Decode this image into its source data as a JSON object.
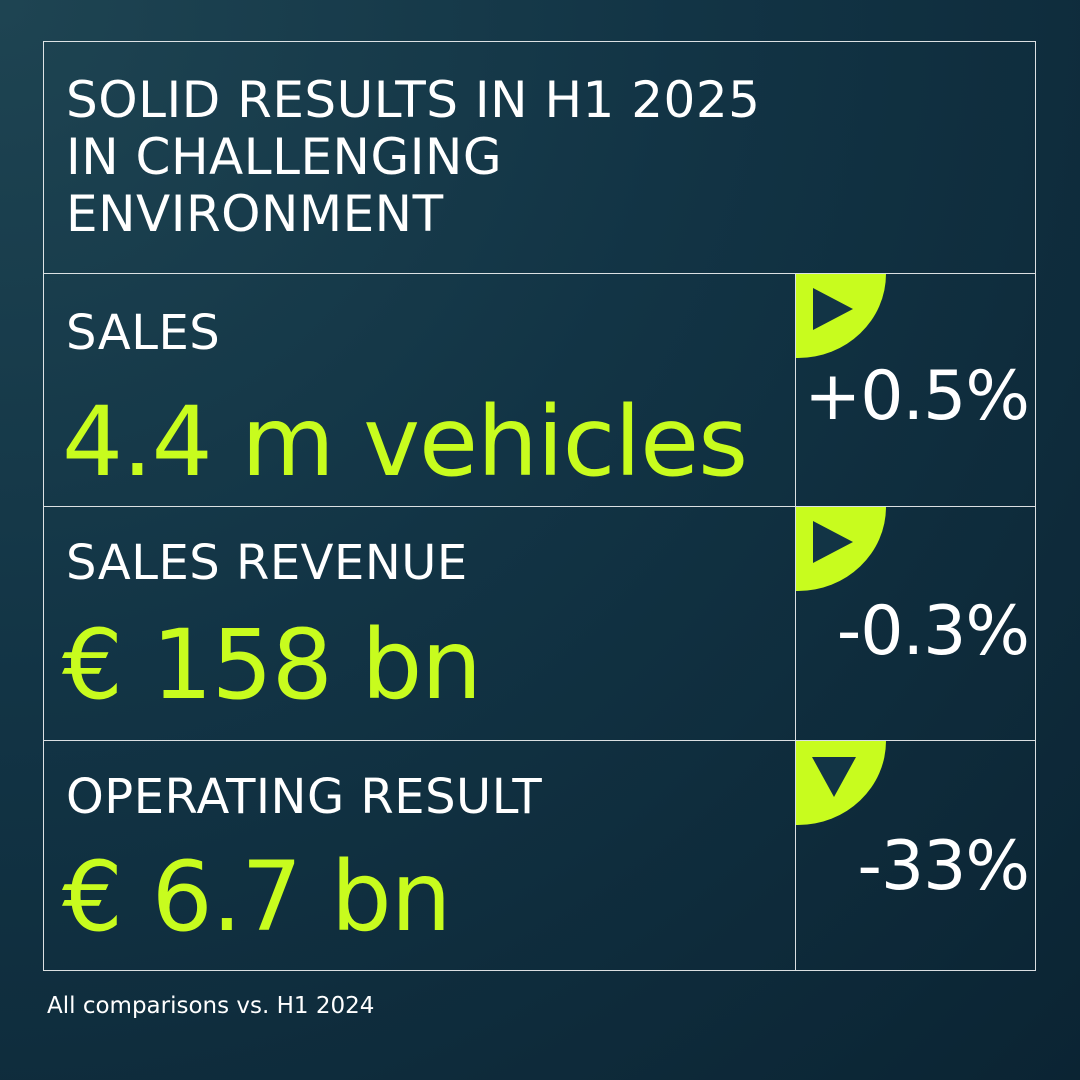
{
  "title": "SOLID RESULTS IN H1 2025\nIN CHALLENGING\nENVIRONMENT",
  "metrics": [
    {
      "label": "SALES",
      "value": "4.4 m vehicles",
      "change": "+0.5%",
      "direction_icon": "triangle-right-icon"
    },
    {
      "label": "SALES REVENUE",
      "value": "€ 158 bn",
      "change": "-0.3%",
      "direction_icon": "triangle-right-icon"
    },
    {
      "label": "OPERATING RESULT",
      "value": "€ 6.7 bn",
      "change": "-33%",
      "direction_icon": "triangle-down-icon"
    }
  ],
  "footnote": "All comparisons vs. H1 2024",
  "colors": {
    "accent": "#c8fc1e",
    "background": "#123445",
    "text": "#ffffff"
  }
}
